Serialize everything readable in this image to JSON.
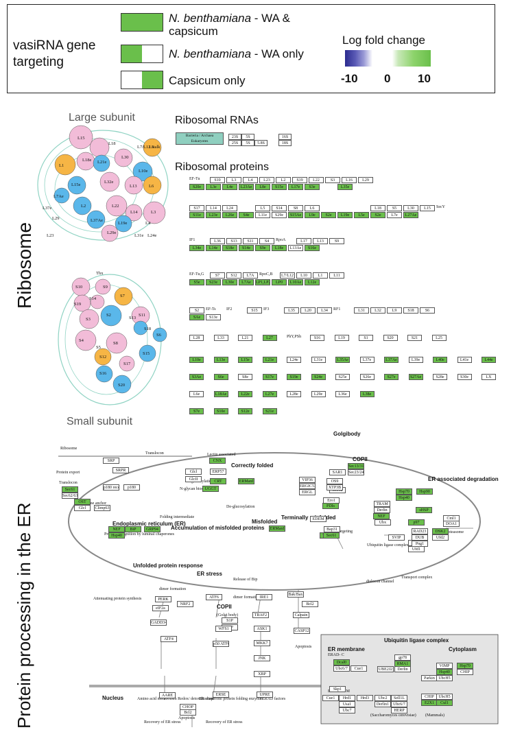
{
  "legend": {
    "title": "vasiRNA gene targeting",
    "items": [
      {
        "label_italic": "N. benthamiana",
        "label_rest": " - WA & capsicum",
        "swatch": "full"
      },
      {
        "label_italic": "N. benthamiana",
        "label_rest": " - WA only",
        "swatch": "left"
      },
      {
        "label_italic": "",
        "label_rest": "Capsicum only",
        "swatch": "right"
      }
    ],
    "scale_title": "Log fold change",
    "scale_ticks": [
      "-10",
      "0",
      "10"
    ],
    "colors": {
      "green": "#6abf4b",
      "blue": "#3a3a9a"
    }
  },
  "ribosome": {
    "section_label": "Ribosome",
    "large_subunit_label": "Large subunit",
    "small_subunit_label": "Small subunit",
    "rrna_title": "Ribosomal RNAs",
    "proteins_title": "Ribosomal proteins",
    "rrna_legend": [
      "Bacteria / Archaea",
      "Eukaryotes"
    ],
    "rrna_boxes": [
      "23S",
      "5S",
      "16S",
      "25S",
      "5S",
      "5.8S",
      "18S"
    ],
    "large_labels": [
      "L15",
      "L18",
      "L7/L12 stalk",
      "L1",
      "L18e",
      "L21e",
      "L30",
      "L10e",
      "L5",
      "L6",
      "L15e",
      "L7Ae",
      "L13",
      "L32e",
      "L3",
      "L37e",
      "L29",
      "L2",
      "L22",
      "L14",
      "L4",
      "L23",
      "L37Ae",
      "L19e",
      "L31e",
      "L24e",
      "L29e"
    ],
    "small_labels": [
      "Thx",
      "S10",
      "S14",
      "S9",
      "S19",
      "S7",
      "S3",
      "S2",
      "S11",
      "S13",
      "S18",
      "S4",
      "S8",
      "S6",
      "S5",
      "S12",
      "S15",
      "S17",
      "S16",
      "S20"
    ],
    "groups": [
      {
        "top": [
          "EF-Tu",
          "S10",
          "L3",
          "L4",
          "L23",
          "L2",
          "S19",
          "L22",
          "S3",
          "L16",
          "L29"
        ],
        "bottom": [
          "S20e",
          "L3e",
          "L4e",
          "L23Ae",
          "L8e",
          "S15e",
          "L17e",
          "S3e",
          "",
          "L35e"
        ]
      },
      {
        "top": [
          "S17",
          "L14",
          "L24",
          "",
          "L5",
          "S14",
          "S8",
          "L6",
          "",
          "",
          "",
          "L18",
          "S5",
          "L30",
          "L15",
          "SecY"
        ],
        "bottom": [
          "S11e",
          "L23e",
          "L26e",
          "S4e",
          "L11e",
          "S29e",
          "S15Ae",
          "L9e",
          "S2e",
          "L19e",
          "L5e",
          "S2e",
          "L7e",
          "L27Ae"
        ]
      },
      {
        "top": [
          "IF1",
          "L36",
          "S13",
          "S11",
          "S4",
          "RpoA",
          "L17",
          "L13",
          "S9"
        ],
        "bottom": [
          "L34e",
          "L14e",
          "S18e",
          "S14e",
          "S9e",
          "L18e",
          "L13Ae",
          "S16e"
        ]
      },
      {
        "top": [
          "EF-Tu,G",
          "S7",
          "S12",
          "L7A",
          "RpoC,B",
          "L7/L12",
          "L10",
          "L1",
          "L11"
        ],
        "bottom": [
          "S5e",
          "S23e",
          "L30e",
          "L7Ae",
          "LP1,LP2",
          "LP0",
          "L10Ae",
          "L12e"
        ]
      },
      {
        "top": [
          "S2",
          "EF-Ts",
          "IF2",
          "S15",
          "IF3",
          "L35",
          "L20",
          "L34",
          "RF1",
          "L31",
          "L32",
          "L9",
          "S18",
          "S6"
        ],
        "bottom": [
          "SAe",
          "S13e"
        ]
      },
      {
        "row": [
          "L28",
          "L33",
          "L21",
          "L27",
          "PhY,PSh",
          "S16",
          "L19",
          "S1",
          "S20",
          "S21",
          "L25"
        ]
      },
      {
        "row": [
          "L10e",
          "L13e",
          "L15e",
          "L21e",
          "L24e",
          "L31e",
          "L35Ae",
          "L37e",
          "L37Ae",
          "L39e",
          "L40e",
          "L41e",
          "L44e"
        ]
      },
      {
        "row": [
          "S3Ae",
          "S6e",
          "S8e",
          "S17e",
          "S19e",
          "S24e",
          "S25e",
          "S26e",
          "S27e",
          "S27Ae",
          "S28e",
          "S30e",
          "LX"
        ]
      },
      {
        "row": [
          "L6e",
          "L18Ae",
          "L22e",
          "L27e",
          "L28e",
          "L29e",
          "L36e",
          "L38e"
        ]
      },
      {
        "row": [
          "S7e",
          "S10e",
          "S12e",
          "S21e"
        ]
      }
    ]
  },
  "er": {
    "section_label": "Protein processing in the ER",
    "titles": {
      "correctly_folded": "Correctly folded",
      "golgibody": "Golgibody",
      "er_degradation": "ER associated degradation",
      "er": "Endoplasmic reticulum (ER)",
      "accumulation": "Accumulation of misfolded proteins",
      "misfolded": "Misfolded",
      "terminally": "Terminally misfolded",
      "upr": "Unfolded protein response",
      "er_stress": "ER stress",
      "nucleus": "Nucleus",
      "ubiquitin": "Ubiquitin ligase complex",
      "er_membrane": "ER membrane",
      "cytoplasm": "Cytoplasm",
      "copii_top": "COPII",
      "copii_mid": "COPII"
    },
    "labels": [
      "Ribosome",
      "Translocon",
      "Protein export",
      "Translocon",
      "Ribosome anchor",
      "Lectin associated",
      "Re-glucosylation",
      "Folding intermediate",
      "De-glucosylation",
      "N-glycan biosynthesis",
      "Protein recognition by luminal chaperones",
      "Protein targeting",
      "Ubiquitin ligase complex",
      "Transport complex",
      "dislocon channel",
      "Proteasome",
      "Release of Bip",
      "dimer formation",
      "dimer formation",
      "Attenuating protein synthesis",
      "(Golgi body)",
      "Apoptosis",
      "Apoptosis",
      "Amino acid metabolism Redox/ detoxification",
      "ER chaperone protein folding enzymes",
      "ERAD factors",
      "Recovery of ER stress",
      "Recovery of ER stress",
      "(Saccharomyces cerevisiae)",
      "(Mammals)",
      "ERAD- C",
      "ERAD- L/ M"
    ],
    "boxes": [
      "SRP",
      "SRPR",
      "Sec61",
      "Sec62/63",
      "p180 receptor",
      "p180",
      "OST",
      "Glcl",
      "Climp63",
      "Glcl",
      "GlcII",
      "CNX",
      "CRT",
      "ERP57",
      "UGGT",
      "ERManI",
      "Sec13/31",
      "Sec23/24",
      "SAR1",
      "Sec12",
      "VIP36",
      "ERGIC53",
      "ERGL",
      "OS9",
      "XTP3B",
      "Ero1",
      "PDIs",
      "EDEM",
      "ERManI",
      "Bap31",
      "TRAP",
      "Sec61",
      "TRAM",
      "Derlin",
      "NEF",
      "Hsp70",
      "Hsp40",
      "Hsp90",
      "sHSP",
      "Ubx",
      "p97",
      "SVIP",
      "Npl4",
      "Ufd1",
      "Cml1",
      "DOA1",
      "RAD23",
      "DUB",
      "Png1",
      "DSK2",
      "Ufd2",
      "NEF",
      "BiP",
      "GRP94",
      "Hsp40",
      "PERK",
      "eIF2a",
      "GADD34",
      "ATF4",
      "NRF2",
      "ATF6",
      "S1P",
      "S2P",
      "WFS1",
      "p50 ATF6",
      "IRE1",
      "TRAF2",
      "ASK1",
      "MKK7",
      "JNK",
      "XBP",
      "Calpain",
      "CASP12",
      "Bak/Bax",
      "Bcl2",
      "CHOP",
      "Bcl2",
      "AARE",
      "ERSE",
      "UPRE",
      "Dcal0",
      "Ubc6/7",
      "Cue1",
      "gp78",
      "RMA1",
      "Derlin",
      "UBE2J2",
      "Hrd1",
      "Usa1",
      "Ubc7",
      "Cue1",
      "Hrd3",
      "Ubc2",
      "Sell1L",
      "Derlin1",
      "HERP",
      "Ubc6/7",
      "VIMP",
      "Hsp40",
      "Hsp70",
      "CHIP",
      "Parkin",
      "UbcH5",
      "CHIP",
      "UbcH5",
      "E2X1",
      "Cul1",
      "FBP",
      "Skp1"
    ]
  }
}
